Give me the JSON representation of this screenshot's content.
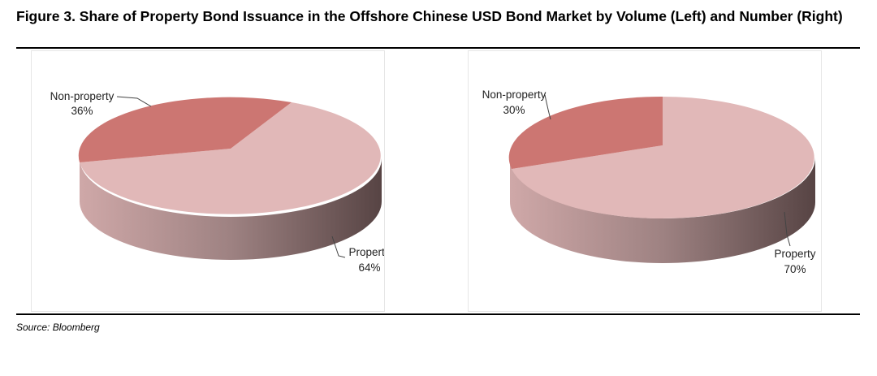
{
  "figure": {
    "title": "Figure 3. Share of Property Bond Issuance in the Offshore Chinese USD Bond Market by Volume (Left) and Number (Right)",
    "source": "Source: Bloomberg"
  },
  "colors": {
    "property_top": "#e1b8b8",
    "non_property_top": "#cc7672",
    "side_light": "#cfa8a8",
    "side_dark": "#574444"
  },
  "chart_data": [
    {
      "type": "pie",
      "title": "",
      "slices": [
        {
          "label": "Non-property",
          "value_label": "36%",
          "value": 36
        },
        {
          "label": "Property",
          "value_label": "64%",
          "value": 64
        }
      ]
    },
    {
      "type": "pie",
      "title": "",
      "slices": [
        {
          "label": "Non-property",
          "value_label": "30%",
          "value": 30
        },
        {
          "label": "Property",
          "value_label": "70%",
          "value": 70
        }
      ]
    }
  ]
}
